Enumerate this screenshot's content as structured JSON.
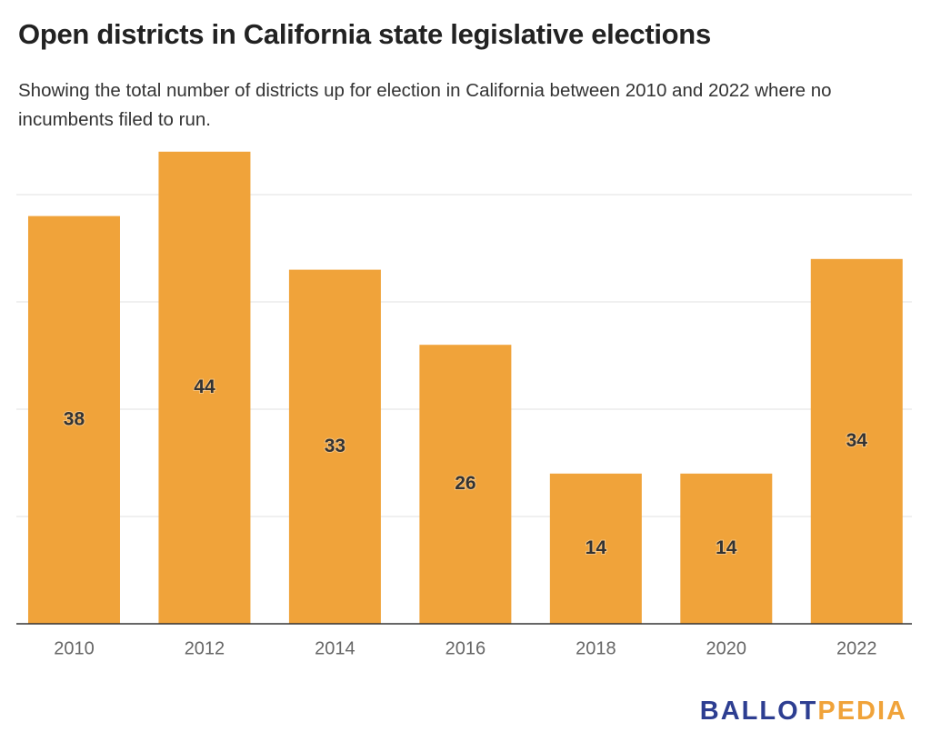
{
  "chart_data": {
    "type": "bar",
    "title": "Open districts in California state legislative elections",
    "subtitle": "Showing the total number of districts up for election in California between 2010 and 2022 where no incumbents filed to run.",
    "categories": [
      "2010",
      "2012",
      "2014",
      "2016",
      "2018",
      "2020",
      "2022"
    ],
    "values": [
      38,
      44,
      33,
      26,
      14,
      14,
      34
    ],
    "color": "#f0a33a",
    "ylim": [
      0,
      45
    ],
    "yticks": [
      0,
      10,
      20,
      30,
      40
    ],
    "grid": true
  },
  "logo": {
    "part1": "BALLOT",
    "part2": "PEDIA"
  }
}
